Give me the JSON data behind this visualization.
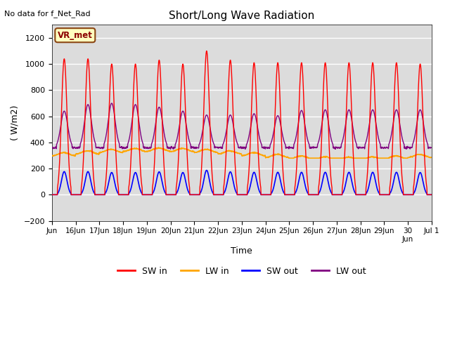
{
  "title": "Short/Long Wave Radiation",
  "xlabel": "Time",
  "ylabel": "( W/m2)",
  "top_left_text": "No data for f_Net_Rad",
  "station_label": "VR_met",
  "ylim": [
    -200,
    1300
  ],
  "yticks": [
    -200,
    0,
    200,
    400,
    600,
    800,
    1000,
    1200
  ],
  "colors": {
    "SW_in": "red",
    "LW_in": "orange",
    "SW_out": "blue",
    "LW_out": "purple"
  },
  "plot_bg": "#dcdcdc",
  "day_peaks_sw": [
    1040,
    1040,
    1000,
    1000,
    1030,
    1000,
    1100,
    1030,
    1010,
    1010,
    1010,
    1010,
    1010,
    1010,
    1010,
    1000
  ],
  "day_peaks_lw_out": [
    640,
    690,
    700,
    690,
    670,
    640,
    610,
    610,
    620,
    605,
    645,
    650,
    650,
    650,
    650,
    650
  ],
  "lw_in_base": 310,
  "lw_in_amplitude": 35,
  "sw_out_factor": 0.17,
  "lw_out_base": 360,
  "sigma_sw": 2.8,
  "sigma_lw_out": 3.5,
  "figsize": [
    6.4,
    4.8
  ],
  "dpi": 100
}
